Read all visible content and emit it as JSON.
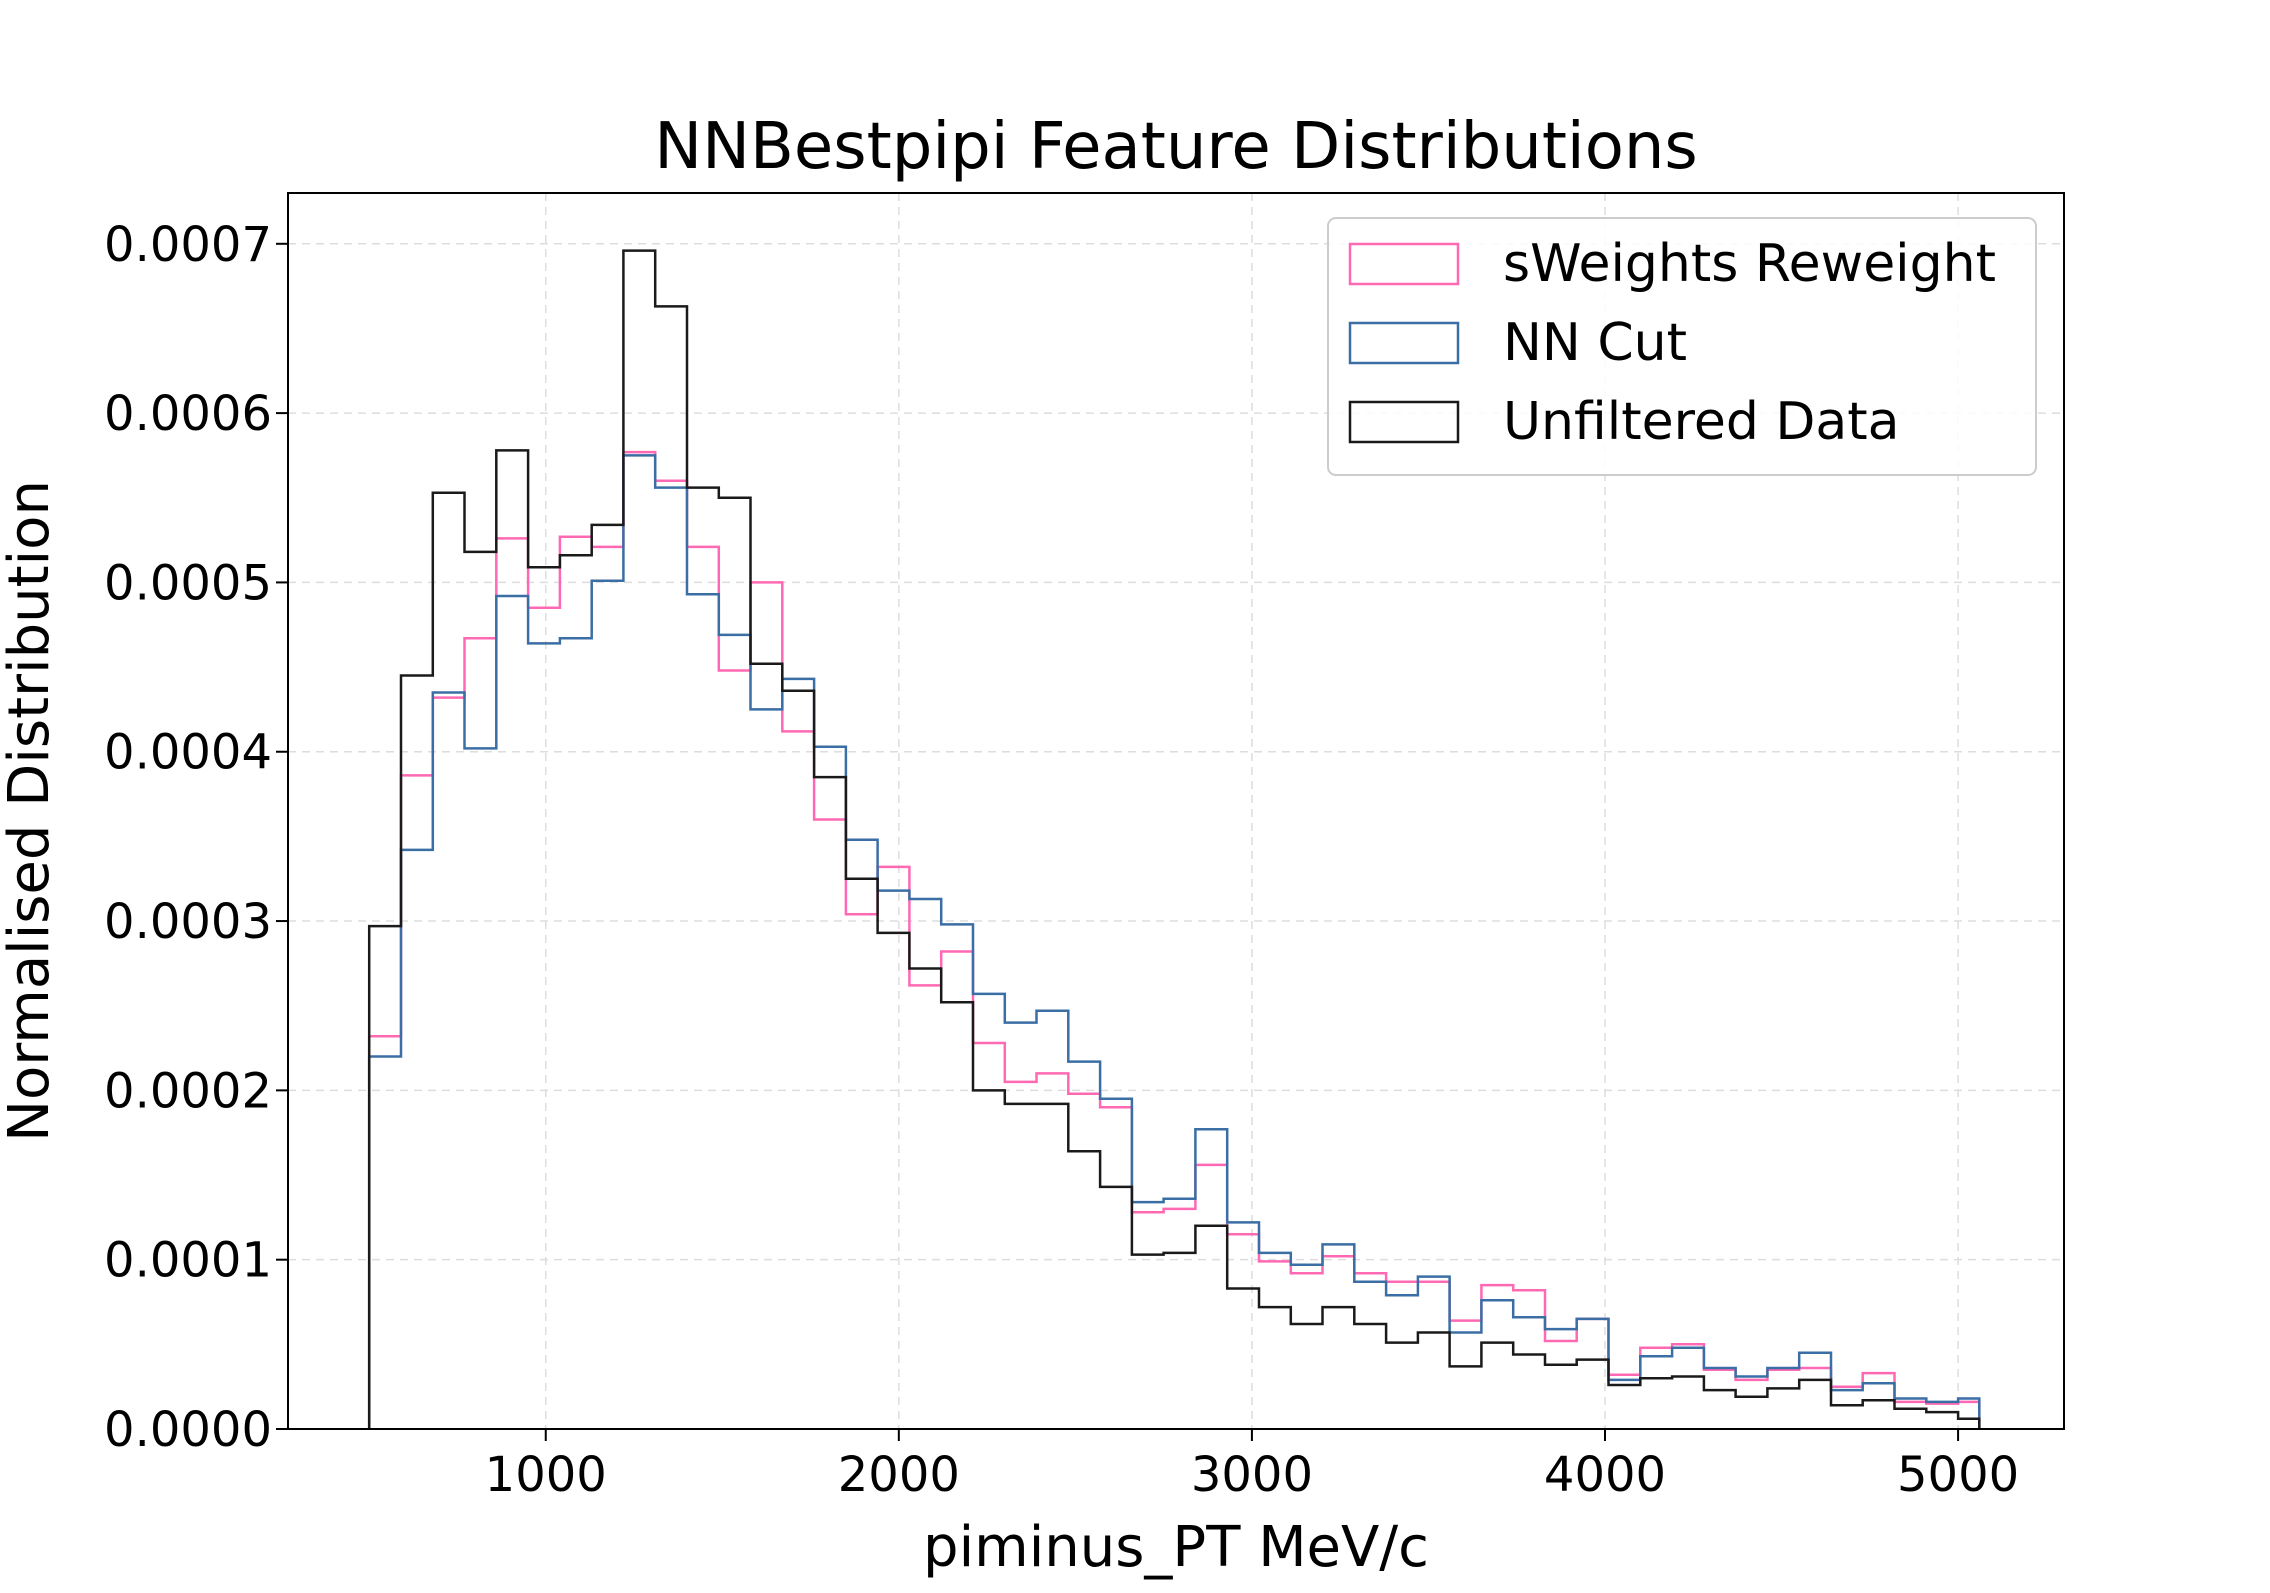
{
  "chart_data": {
    "type": "histogram",
    "title": "NNBestpipi Feature Distributions",
    "xlabel": "piminus_PT MeV/c",
    "ylabel": "Normalised Distribution",
    "xlim": [
      270,
      5300
    ],
    "ylim": [
      0,
      0.00073
    ],
    "x_ticks": [
      1000,
      2000,
      3000,
      4000,
      5000
    ],
    "x_tick_labels": [
      "1000",
      "2000",
      "3000",
      "4000",
      "5000"
    ],
    "y_ticks": [
      0,
      0.0001,
      0.0002,
      0.0003,
      0.0004,
      0.0005,
      0.0006,
      0.0007
    ],
    "y_tick_labels": [
      "0.0000",
      "0.0001",
      "0.0002",
      "0.0003",
      "0.0004",
      "0.0005",
      "0.0006",
      "0.0007"
    ],
    "grid": true,
    "legend_position": "top-right",
    "bin_edges": [
      500,
      590,
      680,
      770,
      860,
      950,
      1040,
      1130,
      1220,
      1310,
      1400,
      1490,
      1580,
      1670,
      1760,
      1850,
      1940,
      2030,
      2120,
      2210,
      2300,
      2390,
      2480,
      2570,
      2660,
      2750,
      2840,
      2930,
      3020,
      3110,
      3200,
      3290,
      3380,
      3470,
      3560,
      3650,
      3740,
      3830,
      3920,
      4010,
      4100,
      4190,
      4280,
      4370,
      4460,
      4550,
      4640,
      4730,
      4820,
      4910,
      5000,
      5060
    ],
    "series": [
      {
        "name": "sWeights Reweight",
        "color": "#ff69b4",
        "values": [
          0.000232,
          0.000386,
          0.000432,
          0.000467,
          0.000526,
          0.000485,
          0.000527,
          0.000521,
          0.000577,
          0.00056,
          0.000521,
          0.000448,
          0.0005,
          0.000412,
          0.00036,
          0.000304,
          0.000332,
          0.000262,
          0.000282,
          0.000228,
          0.000205,
          0.00021,
          0.000198,
          0.00019,
          0.000128,
          0.00013,
          0.000156,
          0.000115,
          9.9e-05,
          9.2e-05,
          0.000102,
          9.2e-05,
          8.7e-05,
          8.7e-05,
          6.4e-05,
          8.5e-05,
          8.2e-05,
          5.2e-05,
          6.5e-05,
          3.2e-05,
          4.8e-05,
          5e-05,
          3.5e-05,
          2.9e-05,
          3.5e-05,
          3.6e-05,
          2.5e-05,
          3.3e-05,
          1.6e-05,
          1.5e-05,
          1.6e-05
        ]
      },
      {
        "name": "NN Cut",
        "color": "#3a6ea5",
        "values": [
          0.00022,
          0.000342,
          0.000435,
          0.000402,
          0.000492,
          0.000464,
          0.000467,
          0.000501,
          0.000575,
          0.000556,
          0.000493,
          0.000469,
          0.000425,
          0.000443,
          0.000403,
          0.000348,
          0.000318,
          0.000313,
          0.000298,
          0.000257,
          0.00024,
          0.000247,
          0.000217,
          0.000195,
          0.000134,
          0.000136,
          0.000177,
          0.000122,
          0.000104,
          9.7e-05,
          0.000109,
          8.7e-05,
          7.9e-05,
          9e-05,
          5.7e-05,
          7.6e-05,
          6.6e-05,
          5.9e-05,
          6.5e-05,
          2.9e-05,
          4.3e-05,
          4.8e-05,
          3.6e-05,
          3.1e-05,
          3.6e-05,
          4.5e-05,
          2.3e-05,
          2.7e-05,
          1.8e-05,
          1.6e-05,
          1.8e-05
        ]
      },
      {
        "name": "Unfiltered Data",
        "color": "#1a1a1a",
        "values": [
          0.000297,
          0.000445,
          0.000553,
          0.000518,
          0.000578,
          0.000509,
          0.000516,
          0.000534,
          0.000696,
          0.000663,
          0.000556,
          0.00055,
          0.000452,
          0.000436,
          0.000385,
          0.000325,
          0.000293,
          0.000272,
          0.000252,
          0.0002,
          0.000192,
          0.000192,
          0.000164,
          0.000143,
          0.000103,
          0.000104,
          0.00012,
          8.3e-05,
          7.2e-05,
          6.2e-05,
          7.2e-05,
          6.2e-05,
          5.1e-05,
          5.7e-05,
          3.7e-05,
          5.1e-05,
          4.4e-05,
          3.8e-05,
          4.1e-05,
          2.6e-05,
          3e-05,
          3.1e-05,
          2.3e-05,
          1.9e-05,
          2.4e-05,
          2.9e-05,
          1.4e-05,
          1.7e-05,
          1.2e-05,
          1e-05,
          6e-06
        ]
      }
    ]
  }
}
